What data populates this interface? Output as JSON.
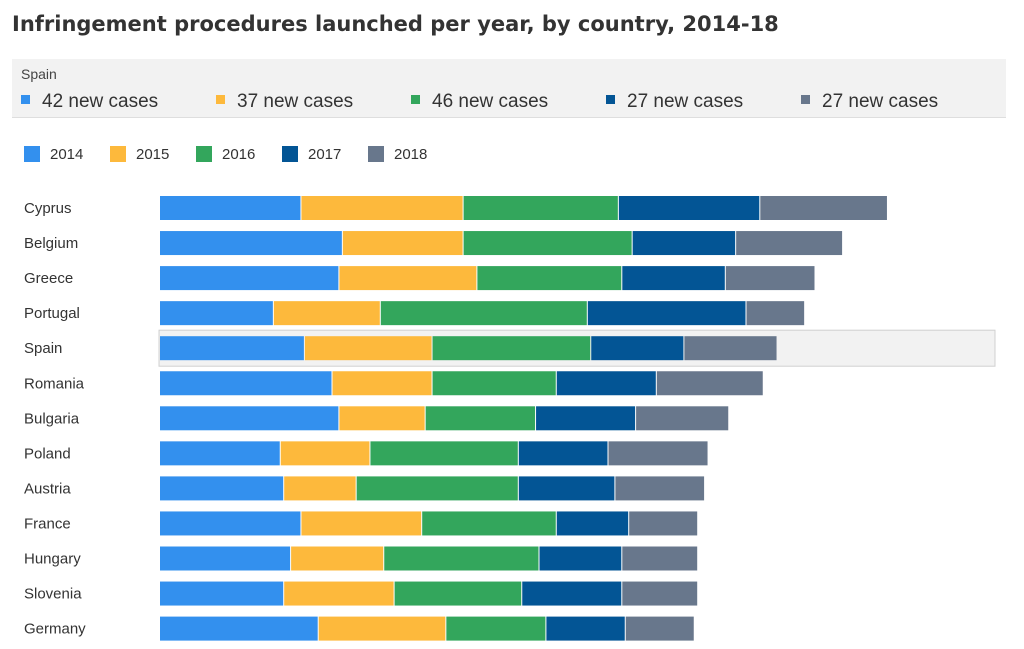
{
  "title": "Infringement procedures launched per year, by country, 2014-18",
  "tooltip": {
    "country": "Spain",
    "items": [
      {
        "label": "42 new cases",
        "color": "#3390ee"
      },
      {
        "label": "37 new cases",
        "color": "#fdb93c"
      },
      {
        "label": "46 new cases",
        "color": "#33a65c"
      },
      {
        "label": "27 new cases",
        "color": "#035595"
      },
      {
        "label": "27 new cases",
        "color": "#68778c"
      }
    ]
  },
  "chart_data": {
    "type": "bar",
    "orientation": "horizontal",
    "stacked": true,
    "title": "Infringement procedures launched per year, by country, 2014-18",
    "legend_position": "top-left",
    "highlighted_category": "Spain",
    "categories": [
      "Cyprus",
      "Belgium",
      "Greece",
      "Portugal",
      "Spain",
      "Romania",
      "Bulgaria",
      "Poland",
      "Austria",
      "France",
      "Hungary",
      "Slovenia",
      "Germany"
    ],
    "series": [
      {
        "name": "2014",
        "color": "#3390ee",
        "values": [
          41,
          53,
          52,
          33,
          42,
          50,
          52,
          35,
          36,
          41,
          38,
          36,
          46
        ]
      },
      {
        "name": "2015",
        "color": "#fdb93c",
        "values": [
          47,
          35,
          40,
          31,
          37,
          29,
          25,
          26,
          21,
          35,
          27,
          32,
          37
        ]
      },
      {
        "name": "2016",
        "color": "#33a65c",
        "values": [
          45,
          49,
          42,
          60,
          46,
          36,
          32,
          43,
          47,
          39,
          45,
          37,
          29
        ]
      },
      {
        "name": "2017",
        "color": "#035595",
        "values": [
          41,
          30,
          30,
          46,
          27,
          29,
          29,
          26,
          28,
          21,
          24,
          29,
          23
        ]
      },
      {
        "name": "2018",
        "color": "#68778c",
        "values": [
          37,
          31,
          26,
          17,
          27,
          31,
          27,
          29,
          26,
          20,
          22,
          22,
          20
        ]
      }
    ]
  }
}
